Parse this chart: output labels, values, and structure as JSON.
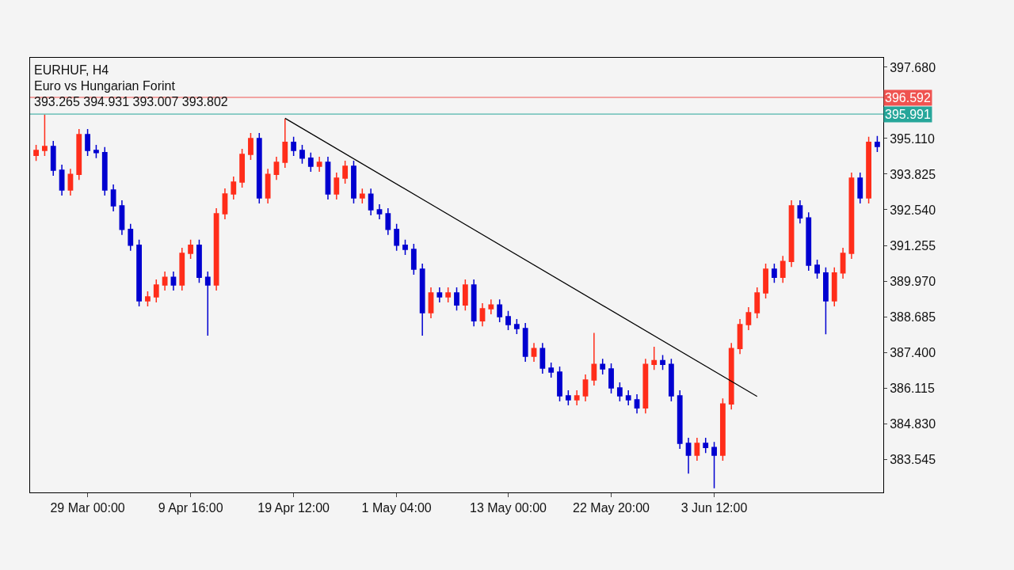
{
  "chart_data": {
    "type": "candlestick",
    "title": "EURHUF, H4",
    "subtitle": "Euro vs Hungarian Forint",
    "annotations": [
      "393.265 394.931 393.007 393.802"
    ],
    "categories": [
      null,
      null,
      null,
      null,
      null,
      null,
      "29 Mar 00:00",
      null,
      null,
      null,
      null,
      null,
      null,
      null,
      null,
      null,
      null,
      null,
      "9 Apr 16:00",
      null,
      null,
      null,
      null,
      null,
      null,
      null,
      null,
      null,
      null,
      null,
      "19 Apr 12:00",
      null,
      null,
      null,
      null,
      null,
      null,
      null,
      null,
      null,
      null,
      null,
      "1 May 04:00",
      null,
      null,
      null,
      null,
      null,
      null,
      null,
      null,
      null,
      null,
      null,
      null,
      "13 May 00:00",
      null,
      null,
      null,
      null,
      null,
      null,
      null,
      null,
      null,
      null,
      null,
      "22 May 20:00",
      null,
      null,
      null,
      null,
      null,
      null,
      null,
      null,
      null,
      null,
      null,
      "3 Jun 12:00",
      null,
      null,
      null,
      null,
      null,
      null,
      null,
      null,
      null,
      null,
      null,
      null,
      null,
      null,
      null,
      null,
      null,
      null,
      null
    ],
    "ohlc": [
      [
        394.5,
        394.88,
        394.3,
        394.68
      ],
      [
        394.68,
        395.97,
        394.48,
        394.82
      ],
      [
        394.82,
        395.02,
        393.77,
        393.97
      ],
      [
        393.97,
        394.17,
        393.05,
        393.25
      ],
      [
        393.25,
        394.02,
        393.05,
        393.82
      ],
      [
        393.82,
        395.45,
        393.62,
        395.25
      ],
      [
        395.25,
        395.45,
        394.48,
        394.68
      ],
      [
        394.68,
        394.88,
        394.4,
        394.6
      ],
      [
        394.6,
        394.8,
        393.05,
        393.25
      ],
      [
        393.25,
        393.45,
        392.48,
        392.68
      ],
      [
        392.68,
        392.88,
        391.63,
        391.83
      ],
      [
        391.83,
        392.03,
        391.06,
        391.26
      ],
      [
        391.26,
        391.46,
        389.06,
        389.26
      ],
      [
        389.26,
        389.6,
        389.06,
        389.4
      ],
      [
        389.4,
        390.03,
        389.2,
        389.83
      ],
      [
        389.83,
        390.31,
        389.63,
        390.11
      ],
      [
        390.11,
        390.31,
        389.63,
        389.83
      ],
      [
        389.83,
        391.17,
        389.63,
        390.97
      ],
      [
        390.97,
        391.46,
        390.77,
        391.26
      ],
      [
        391.26,
        391.46,
        389.91,
        390.11
      ],
      [
        390.11,
        390.31,
        388.0,
        389.83
      ],
      [
        389.83,
        392.6,
        389.63,
        392.4
      ],
      [
        392.4,
        393.31,
        392.2,
        393.11
      ],
      [
        393.11,
        393.74,
        392.91,
        393.54
      ],
      [
        393.54,
        394.74,
        393.34,
        394.54
      ],
      [
        394.54,
        395.31,
        394.34,
        395.11
      ],
      [
        395.11,
        395.31,
        392.77,
        392.97
      ],
      [
        392.97,
        394.02,
        392.77,
        393.82
      ],
      [
        393.82,
        394.45,
        393.62,
        394.25
      ],
      [
        394.25,
        395.82,
        394.05,
        394.97
      ],
      [
        394.97,
        395.17,
        394.48,
        394.68
      ],
      [
        394.68,
        394.88,
        394.2,
        394.4
      ],
      [
        394.4,
        394.6,
        393.91,
        394.11
      ],
      [
        394.11,
        394.45,
        393.91,
        394.25
      ],
      [
        394.25,
        394.45,
        392.91,
        393.11
      ],
      [
        393.11,
        393.88,
        392.91,
        393.68
      ],
      [
        393.68,
        394.31,
        393.48,
        394.11
      ],
      [
        394.11,
        394.31,
        392.77,
        392.97
      ],
      [
        392.97,
        393.3,
        392.77,
        393.1
      ],
      [
        393.1,
        393.3,
        392.34,
        392.54
      ],
      [
        392.54,
        392.74,
        392.2,
        392.4
      ],
      [
        392.4,
        392.6,
        391.63,
        391.83
      ],
      [
        391.83,
        392.03,
        391.06,
        391.26
      ],
      [
        391.26,
        391.46,
        390.91,
        391.11
      ],
      [
        391.11,
        391.31,
        390.2,
        390.4
      ],
      [
        390.4,
        390.6,
        388.0,
        388.83
      ],
      [
        388.83,
        389.74,
        388.63,
        389.54
      ],
      [
        389.54,
        389.74,
        389.2,
        389.4
      ],
      [
        389.4,
        389.74,
        389.2,
        389.54
      ],
      [
        389.54,
        389.74,
        388.91,
        389.11
      ],
      [
        389.11,
        390.03,
        388.91,
        389.83
      ],
      [
        389.83,
        390.03,
        388.34,
        388.54
      ],
      [
        388.54,
        389.17,
        388.34,
        388.97
      ],
      [
        388.97,
        389.31,
        388.77,
        389.11
      ],
      [
        389.11,
        389.31,
        388.49,
        388.69
      ],
      [
        388.69,
        388.89,
        388.2,
        388.4
      ],
      [
        388.4,
        388.6,
        388.06,
        388.26
      ],
      [
        388.26,
        388.46,
        387.06,
        387.26
      ],
      [
        387.26,
        387.74,
        387.06,
        387.54
      ],
      [
        387.54,
        387.74,
        386.63,
        386.83
      ],
      [
        386.83,
        387.03,
        386.49,
        386.69
      ],
      [
        386.69,
        386.89,
        385.63,
        385.83
      ],
      [
        385.83,
        386.03,
        385.49,
        385.69
      ],
      [
        385.69,
        386.03,
        385.49,
        385.83
      ],
      [
        385.83,
        386.6,
        385.63,
        386.4
      ],
      [
        386.4,
        388.1,
        386.2,
        386.97
      ],
      [
        386.97,
        387.17,
        386.6,
        386.8
      ],
      [
        386.8,
        387.0,
        385.92,
        386.12
      ],
      [
        386.12,
        386.32,
        385.63,
        385.83
      ],
      [
        385.83,
        386.03,
        385.49,
        385.69
      ],
      [
        385.69,
        385.89,
        385.2,
        385.4
      ],
      [
        385.4,
        387.17,
        385.2,
        386.97
      ],
      [
        386.97,
        387.6,
        386.77,
        387.1
      ],
      [
        387.1,
        387.3,
        386.77,
        386.97
      ],
      [
        386.97,
        387.17,
        385.63,
        385.83
      ],
      [
        385.83,
        386.03,
        383.92,
        384.12
      ],
      [
        384.12,
        384.32,
        383.03,
        383.69
      ],
      [
        383.69,
        384.32,
        383.49,
        384.12
      ],
      [
        384.12,
        384.32,
        383.77,
        383.97
      ],
      [
        383.97,
        384.17,
        382.5,
        383.69
      ],
      [
        383.69,
        385.74,
        383.49,
        385.54
      ],
      [
        385.54,
        387.74,
        385.34,
        387.54
      ],
      [
        387.54,
        388.6,
        387.34,
        388.4
      ],
      [
        388.4,
        389.03,
        388.2,
        388.83
      ],
      [
        388.83,
        389.74,
        388.63,
        389.54
      ],
      [
        389.54,
        390.6,
        389.34,
        390.4
      ],
      [
        390.4,
        390.6,
        389.91,
        390.11
      ],
      [
        390.11,
        390.88,
        389.91,
        390.68
      ],
      [
        390.68,
        392.88,
        390.48,
        392.68
      ],
      [
        392.68,
        392.88,
        392.05,
        392.25
      ],
      [
        392.25,
        392.45,
        390.34,
        390.54
      ],
      [
        390.54,
        390.74,
        390.06,
        390.26
      ],
      [
        390.26,
        390.46,
        388.05,
        389.26
      ],
      [
        389.26,
        390.46,
        389.06,
        390.26
      ],
      [
        390.26,
        391.17,
        390.06,
        390.97
      ],
      [
        390.97,
        393.88,
        390.77,
        393.68
      ],
      [
        393.68,
        393.88,
        392.77,
        392.97
      ],
      [
        392.97,
        395.17,
        392.77,
        394.97
      ],
      [
        394.97,
        395.2,
        394.62,
        394.82
      ]
    ],
    "colors": [
      "#ff2d1a",
      "#ff2d1a",
      "#0000d0",
      "#0000d0",
      "#ff2d1a",
      "#ff2d1a",
      "#0000d0",
      "#0000d0",
      "#0000d0",
      "#0000d0",
      "#0000d0",
      "#0000d0",
      "#0000d0",
      "#ff2d1a",
      "#ff2d1a",
      "#ff2d1a",
      "#0000d0",
      "#ff2d1a",
      "#ff2d1a",
      "#0000d0",
      "#0000d0",
      "#ff2d1a",
      "#ff2d1a",
      "#ff2d1a",
      "#ff2d1a",
      "#ff2d1a",
      "#0000d0",
      "#ff2d1a",
      "#ff2d1a",
      "#ff2d1a",
      "#0000d0",
      "#0000d0",
      "#0000d0",
      "#ff2d1a",
      "#0000d0",
      "#ff2d1a",
      "#ff2d1a",
      "#0000d0",
      "#ff2d1a",
      "#0000d0",
      "#0000d0",
      "#0000d0",
      "#0000d0",
      "#0000d0",
      "#0000d0",
      "#0000d0",
      "#ff2d1a",
      "#0000d0",
      "#ff2d1a",
      "#0000d0",
      "#ff2d1a",
      "#0000d0",
      "#ff2d1a",
      "#ff2d1a",
      "#0000d0",
      "#0000d0",
      "#0000d0",
      "#0000d0",
      "#ff2d1a",
      "#0000d0",
      "#0000d0",
      "#0000d0",
      "#0000d0",
      "#ff2d1a",
      "#ff2d1a",
      "#ff2d1a",
      "#0000d0",
      "#0000d0",
      "#0000d0",
      "#0000d0",
      "#0000d0",
      "#ff2d1a",
      "#ff2d1a",
      "#0000d0",
      "#0000d0",
      "#0000d0",
      "#0000d0",
      "#ff2d1a",
      "#0000d0",
      "#0000d0",
      "#ff2d1a",
      "#ff2d1a",
      "#ff2d1a",
      "#ff2d1a",
      "#ff2d1a",
      "#ff2d1a",
      "#0000d0",
      "#ff2d1a",
      "#ff2d1a",
      "#0000d0",
      "#0000d0",
      "#0000d0",
      "#0000d0",
      "#ff2d1a",
      "#ff2d1a",
      "#ff2d1a",
      "#0000d0",
      "#ff2d1a",
      "#0000d0"
    ],
    "series": [
      {
        "type": "line",
        "values": [
          null,
          null,
          null,
          null,
          null,
          null,
          null,
          null,
          null,
          null,
          null,
          null,
          null,
          null,
          null,
          null,
          null,
          null,
          null,
          null,
          null,
          null,
          null,
          null,
          null,
          null,
          null,
          null,
          null,
          395.84,
          null,
          null,
          null,
          null,
          null,
          null,
          null,
          null,
          null,
          null,
          null,
          null,
          null,
          null,
          null,
          null,
          null,
          null,
          null,
          null,
          null,
          null,
          null,
          null,
          null,
          null,
          null,
          null,
          null,
          null,
          null,
          null,
          null,
          null,
          null,
          null,
          null,
          null,
          null,
          null,
          null,
          null,
          null,
          null,
          null,
          null,
          null,
          null,
          null,
          null,
          null,
          null,
          null,
          null,
          385.81,
          null,
          null,
          null,
          null,
          null,
          null,
          null,
          null,
          null,
          null,
          null,
          null,
          null,
          null
        ],
        "color": "#000000"
      }
    ],
    "ref_lines": [
      {
        "axis": "y",
        "value": 396.592,
        "label": "396.592",
        "color": "#ef5350"
      },
      {
        "axis": "y",
        "value": 395.991,
        "label": "395.991",
        "color": "#26a69a"
      }
    ],
    "ylim": [
      382.35,
      398.02
    ],
    "yticks": [
      {
        "value": 397.68,
        "label": "397.680"
      },
      {
        "value": 395.11,
        "label": "395.110"
      },
      {
        "value": 393.825,
        "label": "393.825"
      },
      {
        "value": 392.54,
        "label": "392.540"
      },
      {
        "value": 391.255,
        "label": "391.255"
      },
      {
        "value": 389.97,
        "label": "389.970"
      },
      {
        "value": 388.685,
        "label": "388.685"
      },
      {
        "value": 387.4,
        "label": "387.400"
      },
      {
        "value": 386.115,
        "label": "386.115"
      },
      {
        "value": 384.83,
        "label": "384.830"
      },
      {
        "value": 383.545,
        "label": "383.545"
      }
    ],
    "grid": false
  }
}
